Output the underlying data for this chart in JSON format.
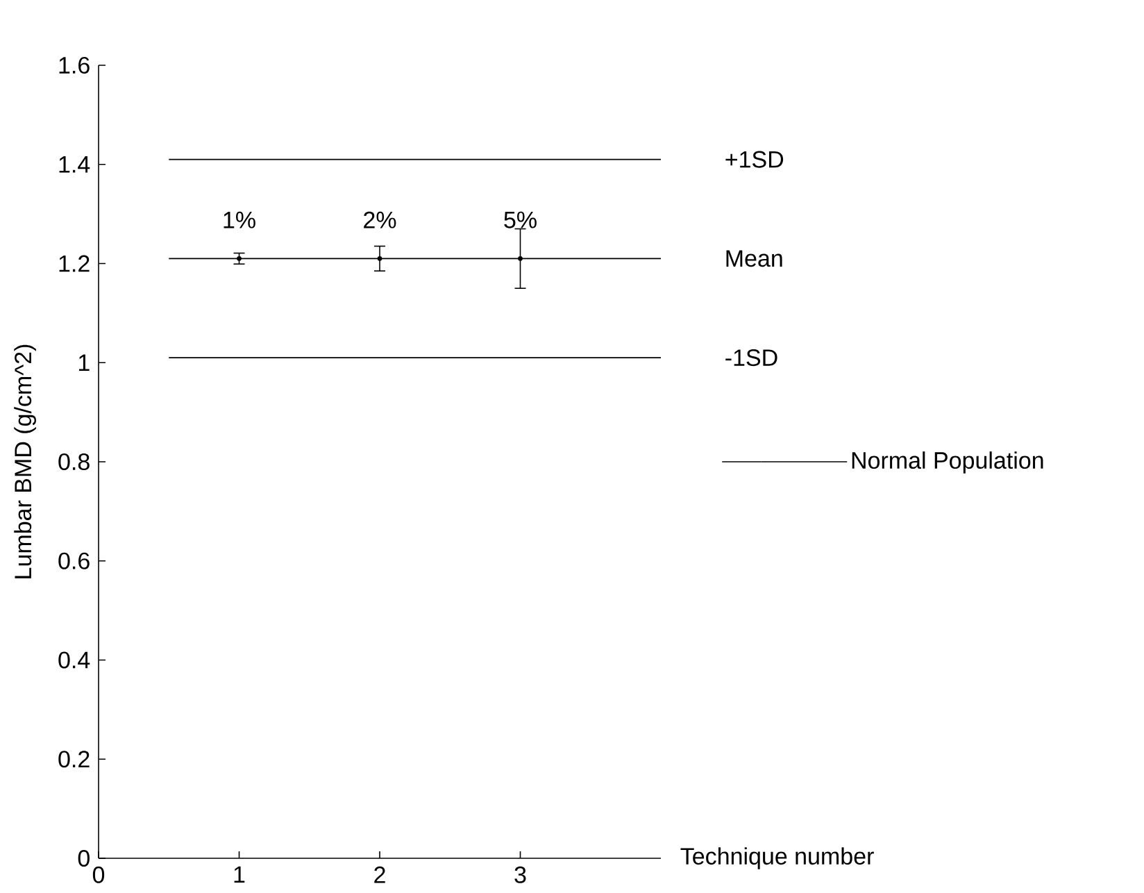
{
  "chart_data": {
    "type": "scatter",
    "xlabel": "Technique number",
    "ylabel": "Lumbar BMD (g/cm^2)",
    "xlim": [
      0,
      4
    ],
    "xticks": [
      0,
      1,
      2,
      3
    ],
    "ylim": [
      0,
      1.6
    ],
    "yticks": [
      0,
      0.2,
      0.4,
      0.6,
      0.8,
      1,
      1.2,
      1.4,
      1.6
    ],
    "series": [
      {
        "type": "line",
        "name": "Normal Population",
        "color": "#000000",
        "x": [
          0.5,
          4
        ],
        "values": [
          1.21,
          1.21
        ]
      },
      {
        "type": "line",
        "color": "#000000",
        "x": [
          0.5,
          4
        ],
        "values": [
          1.41,
          1.41
        ]
      },
      {
        "type": "line",
        "color": "#000000",
        "x": [
          0.5,
          4
        ],
        "values": [
          1.01,
          1.01
        ]
      },
      {
        "color": "#000000",
        "x": [
          1,
          2,
          3
        ],
        "values": [
          1.21,
          1.21,
          1.21
        ],
        "errors": [
          0.011,
          0.025,
          0.06
        ]
      }
    ],
    "annotations": [
      {
        "text": "1%",
        "x": 1,
        "y": 1.21
      },
      {
        "text": "2%",
        "x": 2,
        "y": 1.21
      },
      {
        "text": "5%",
        "x": 3,
        "y": 1.21
      },
      {
        "text": "+1SD",
        "x": 4,
        "y": 1.41
      },
      {
        "text": "Mean",
        "x": 4,
        "y": 1.21
      },
      {
        "text": "-1SD",
        "x": 4,
        "y": 1.01
      }
    ],
    "legend": "right",
    "grid": false
  }
}
